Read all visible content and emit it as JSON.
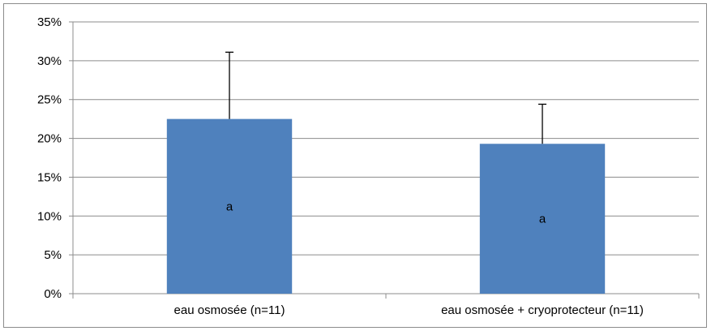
{
  "chart_data": {
    "type": "bar",
    "categories": [
      "eau osmosée (n=11)",
      "eau osmosée + cryoprotecteur (n=11)"
    ],
    "values": [
      0.225,
      0.193
    ],
    "error_bars_upper": [
      0.086,
      0.051
    ],
    "data_labels": [
      "a",
      "a"
    ],
    "bar_color": "#4F81BD",
    "ylim": [
      0,
      0.35
    ],
    "ytick_step": 0.05,
    "ytick_labels": [
      "0%",
      "5%",
      "10%",
      "15%",
      "20%",
      "25%",
      "30%",
      "35%"
    ],
    "grid": true,
    "legend": "none",
    "title": "",
    "xlabel": "",
    "ylabel": ""
  }
}
